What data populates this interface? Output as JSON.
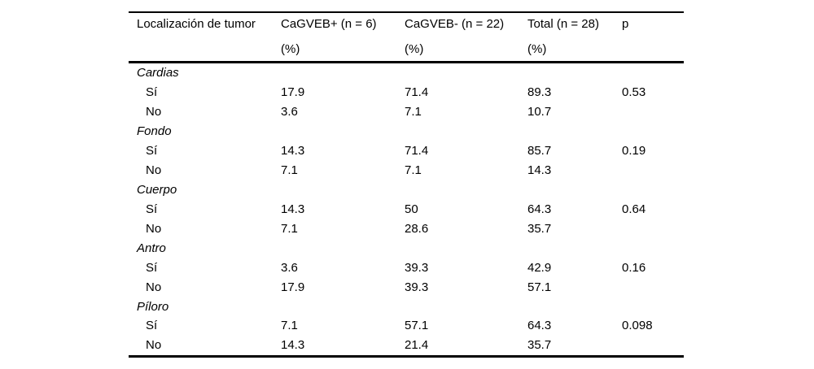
{
  "page": {
    "background": "#ffffff",
    "text_color": "#000000",
    "rule_color": "#000000"
  },
  "table": {
    "header": {
      "localizacion": "Localización de tumor",
      "cagveb_pos_line1": "CaGVEB+ (n = 6)",
      "cagveb_pos_line2": "(%)",
      "cagveb_neg_line1": "CaGVEB- (n = 22)",
      "cagveb_neg_line2": "(%)",
      "total_line1": "Total (n = 28)",
      "total_line2": "(%)",
      "p": "p"
    },
    "groups": [
      {
        "name": "Cardias",
        "rows": [
          {
            "label": "Sí",
            "values": [
              "17.9",
              "71.4",
              "89.3",
              "0.53"
            ]
          },
          {
            "label": "No",
            "values": [
              "3.6",
              "7.1",
              "10.7",
              ""
            ]
          }
        ]
      },
      {
        "name": "Fondo",
        "rows": [
          {
            "label": "Sí",
            "values": [
              "14.3",
              "71.4",
              "85.7",
              "0.19"
            ]
          },
          {
            "label": "No",
            "values": [
              "7.1",
              "7.1",
              "14.3",
              ""
            ]
          }
        ]
      },
      {
        "name": "Cuerpo",
        "rows": [
          {
            "label": "Sí",
            "values": [
              "14.3",
              "50",
              "64.3",
              "0.64"
            ]
          },
          {
            "label": "No",
            "values": [
              "7.1",
              "28.6",
              "35.7",
              ""
            ]
          }
        ]
      },
      {
        "name": "Antro",
        "rows": [
          {
            "label": "Sí",
            "values": [
              "3.6",
              "39.3",
              "42.9",
              "0.16"
            ]
          },
          {
            "label": "No",
            "values": [
              "17.9",
              "39.3",
              "57.1",
              ""
            ]
          }
        ]
      },
      {
        "name": "Píloro",
        "rows": [
          {
            "label": "Sí",
            "values": [
              "7.1",
              "57.1",
              "64.3",
              "0.098"
            ]
          },
          {
            "label": "No",
            "values": [
              "14.3",
              "21.4",
              "35.7",
              ""
            ]
          }
        ]
      }
    ]
  }
}
